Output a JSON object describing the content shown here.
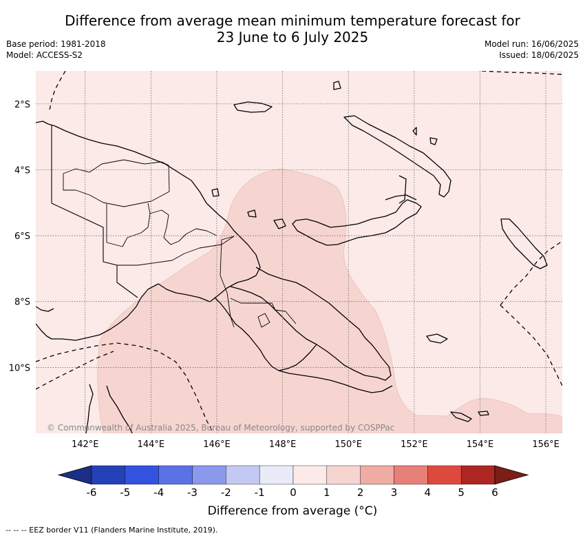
{
  "title": {
    "line1": "Difference from average mean minimum temperature forecast for",
    "line2": "23 June to 6 July 2025"
  },
  "meta": {
    "base_period": "Base period: 1981-2018",
    "model": "Model: ACCESS-S2",
    "model_run": "Model run: 16/06/2025",
    "issued": "Issued: 18/06/2025"
  },
  "map": {
    "lon_range": [
      140.5,
      156.5
    ],
    "lat_range": [
      -12.0,
      -1.0
    ],
    "lon_ticks": [
      "142°E",
      "144°E",
      "146°E",
      "148°E",
      "150°E",
      "152°E",
      "154°E",
      "156°E"
    ],
    "lat_ticks": [
      "2°S",
      "4°S",
      "6°S",
      "8°S",
      "10°S"
    ],
    "background_class": "0 to 1",
    "anomaly_region_class": "1 to 2",
    "copyright": "© Commonwealth of Australia 2025, Bureau of Meteorology, supported by COSPPac"
  },
  "colorbar": {
    "ticks": [
      "-6",
      "-5",
      "-4",
      "-3",
      "-2",
      "-1",
      "0",
      "1",
      "2",
      "3",
      "4",
      "5",
      "6"
    ],
    "colors": [
      "#1c2f85",
      "#2441b7",
      "#3452e0",
      "#5b72e6",
      "#8a99ec",
      "#c3c9f3",
      "#e9ebf9",
      "#fbeae7",
      "#f6d5d1",
      "#f0aba3",
      "#e8807a",
      "#dd4a3d",
      "#ad2622",
      "#7a1e17"
    ],
    "label": "Difference from average (°C)"
  },
  "footnote": "-- -- -- EEZ border V11 (Flanders Marine Institute, 2019)."
}
